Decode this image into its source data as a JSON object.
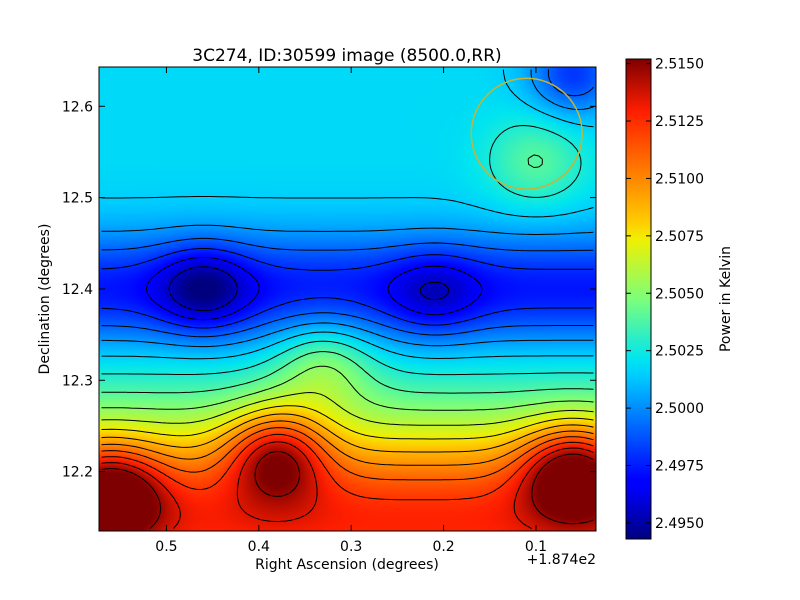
{
  "chart_data": {
    "type": "heatmap",
    "title": "3C274, ID:30599 image (8500.0,RR)",
    "xlabel": "Right Ascension (degrees)",
    "ylabel": "Declination (degrees)",
    "x_offset_label": "+1.874e2",
    "x_reversed": true,
    "xlim": [
      0.573,
      0.035
    ],
    "ylim": [
      12.135,
      12.643
    ],
    "x_ticks": [
      0.5,
      0.4,
      0.3,
      0.2,
      0.1
    ],
    "x_tick_labels": [
      "0.5",
      "0.4",
      "0.3",
      "0.2",
      "0.1"
    ],
    "y_ticks": [
      12.2,
      12.3,
      12.4,
      12.5,
      12.6
    ],
    "y_tick_labels": [
      "12.2",
      "12.3",
      "12.4",
      "12.5",
      "12.6"
    ],
    "colorbar": {
      "label": "Power in Kelvin",
      "range": [
        2.4943,
        2.5152
      ],
      "ticks": [
        2.495,
        2.4975,
        2.5,
        2.5025,
        2.505,
        2.5075,
        2.51,
        2.5125,
        2.515
      ],
      "tick_labels": [
        "2.4950",
        "2.4975",
        "2.5000",
        "2.5025",
        "2.5050",
        "2.5075",
        "2.5100",
        "2.5125",
        "2.5150"
      ],
      "colormap": "jet"
    },
    "field_features": [
      {
        "kind": "min",
        "ra": 0.46,
        "dec": 12.4,
        "value": 2.4957
      },
      {
        "kind": "min",
        "ra": 0.21,
        "dec": 12.395,
        "value": 2.498
      },
      {
        "kind": "min",
        "ra": 0.06,
        "dec": 12.635,
        "value": 2.495
      },
      {
        "kind": "max",
        "ra": 0.38,
        "dec": 12.22,
        "value": 2.5128
      },
      {
        "kind": "max",
        "ra": 0.06,
        "dec": 12.2,
        "value": 2.514
      },
      {
        "kind": "max",
        "ra": 0.56,
        "dec": 12.175,
        "value": 2.513
      },
      {
        "kind": "max",
        "ra": 0.33,
        "dec": 12.32,
        "value": 2.507
      },
      {
        "kind": "max",
        "ra": 0.1,
        "dec": 12.54,
        "value": 2.5058
      }
    ],
    "marker_circle": {
      "ra": 0.11,
      "dec": 12.57,
      "radius_deg": 0.06,
      "color": "#c8b432"
    },
    "contour_color": "#000000",
    "grid": false
  }
}
